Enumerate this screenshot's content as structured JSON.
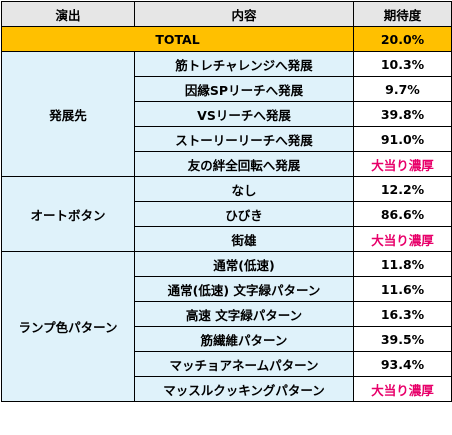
{
  "headers": {
    "col1": "演出",
    "col2": "内容",
    "col3": "期待度"
  },
  "total": {
    "label": "TOTAL",
    "value": "20.0%"
  },
  "groups": [
    {
      "name": "発展先",
      "rows": [
        {
          "label": "筋トレチャレンジへ発展",
          "value": "10.3%"
        },
        {
          "label": "因縁SPリーチへ発展",
          "value": "9.7%"
        },
        {
          "label": "VSリーチへ発展",
          "value": "39.8%"
        },
        {
          "label": "ストーリーリーチへ発展",
          "value": "91.0%"
        },
        {
          "label": "友の絆全回転へ発展",
          "value": "大当り濃厚"
        }
      ]
    },
    {
      "name": "オートボタン",
      "rows": [
        {
          "label": "なし",
          "value": "12.2%"
        },
        {
          "label": "ひびき",
          "value": "86.6%"
        },
        {
          "label": "街雄",
          "value": "大当り濃厚"
        }
      ]
    },
    {
      "name": "ランプ色パターン",
      "rows": [
        {
          "label": "通常(低速)",
          "value": "11.8%"
        },
        {
          "label": "通常(低速) 文字緑パターン",
          "value": "11.6%"
        },
        {
          "label": "高速 文字緑パターン",
          "value": "16.3%"
        },
        {
          "label": "筋繊維パターン",
          "value": "39.5%"
        },
        {
          "label": "マッチョアネームパターン",
          "value": "93.4%"
        },
        {
          "label": "マッスルクッキングパターン",
          "value": "大当り濃厚"
        }
      ]
    }
  ],
  "colors": {
    "total_bg": "#ffc000",
    "cell_bg": "#dff2fa",
    "header_bg": "#e6e6e6",
    "special_text": "#e8006a"
  }
}
